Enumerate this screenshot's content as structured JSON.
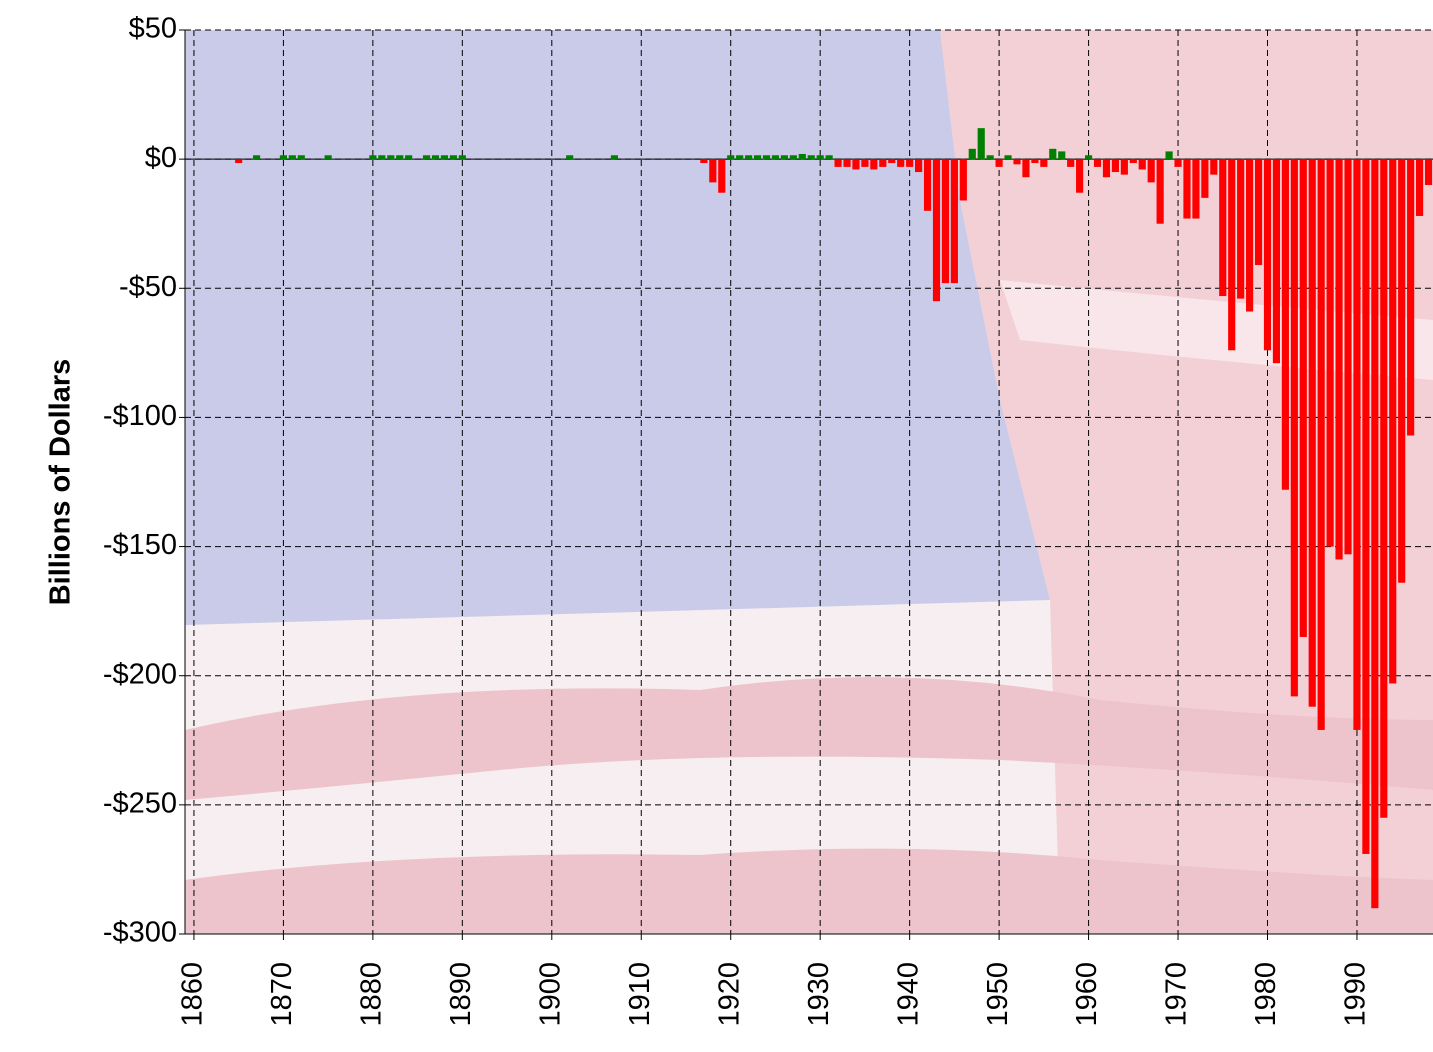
{
  "chart_data": {
    "type": "bar",
    "y_label": "Billions of Dollars",
    "x": [
      1865,
      1867,
      1870,
      1871,
      1872,
      1875,
      1880,
      1881,
      1882,
      1883,
      1884,
      1886,
      1887,
      1888,
      1889,
      1890,
      1902,
      1907,
      1917,
      1918,
      1919,
      1920,
      1921,
      1922,
      1923,
      1924,
      1925,
      1926,
      1927,
      1928,
      1929,
      1930,
      1931,
      1932,
      1933,
      1934,
      1935,
      1936,
      1937,
      1938,
      1939,
      1940,
      1941,
      1942,
      1943,
      1944,
      1945,
      1946,
      1947,
      1948,
      1949,
      1950,
      1951,
      1952,
      1953,
      1954,
      1955,
      1956,
      1957,
      1958,
      1959,
      1960,
      1961,
      1962,
      1963,
      1964,
      1965,
      1966,
      1967,
      1968,
      1969,
      1970,
      1971,
      1972,
      1973,
      1974,
      1975,
      1976,
      1977,
      1978,
      1979,
      1980,
      1981,
      1982,
      1983,
      1984,
      1985,
      1986,
      1987,
      1988,
      1989,
      1990,
      1991,
      1992,
      1993,
      1994,
      1995,
      1996,
      1997,
      1998
    ],
    "values": [
      -1.5,
      1.5,
      1.5,
      1.5,
      1.5,
      1.5,
      1.5,
      1.5,
      1.5,
      1.5,
      1.5,
      1.5,
      1.5,
      1.5,
      1.5,
      1.5,
      1.5,
      1.5,
      -1.5,
      -9,
      -13,
      1.5,
      1.5,
      1.5,
      1.5,
      1.5,
      1.5,
      1.5,
      1.5,
      2,
      1.5,
      1.5,
      1.5,
      -3,
      -3,
      -4,
      -3,
      -4,
      -3,
      -1.5,
      -3,
      -3,
      -5,
      -20,
      -55,
      -48,
      -48,
      -16,
      4,
      12,
      1.5,
      -3,
      1.5,
      -2,
      -7,
      -1.5,
      -3,
      4,
      3,
      -3,
      -13,
      1.5,
      -3,
      -7,
      -5,
      -6,
      -1.5,
      -4,
      -9,
      -25,
      3,
      -3,
      -23,
      -23,
      -15,
      -6,
      -53,
      -74,
      -54,
      -59,
      -41,
      -74,
      -79,
      -128,
      -208,
      -185,
      -212,
      -221,
      -150,
      -155,
      -153,
      -221,
      -269,
      -290,
      -255,
      -203,
      -164,
      -107,
      -22,
      -10
    ],
    "colors": {
      "positive": "#008000",
      "negative": "#ff0000"
    },
    "xlim": [
      1859,
      1998.5
    ],
    "xticks": [
      1860,
      1870,
      1880,
      1890,
      1900,
      1910,
      1920,
      1930,
      1940,
      1950,
      1960,
      1970,
      1980,
      1990
    ],
    "ylim": [
      -300,
      50
    ],
    "yticks": [
      {
        "value": 50,
        "label": "$50"
      },
      {
        "value": 0,
        "label": "$0"
      },
      {
        "value": -50,
        "label": "-$50"
      },
      {
        "value": -100,
        "label": "-$100"
      },
      {
        "value": -150,
        "label": "-$150"
      },
      {
        "value": -200,
        "label": "-$200"
      },
      {
        "value": -250,
        "label": "-$250"
      },
      {
        "value": -300,
        "label": "-$300"
      }
    ],
    "grid": true
  }
}
